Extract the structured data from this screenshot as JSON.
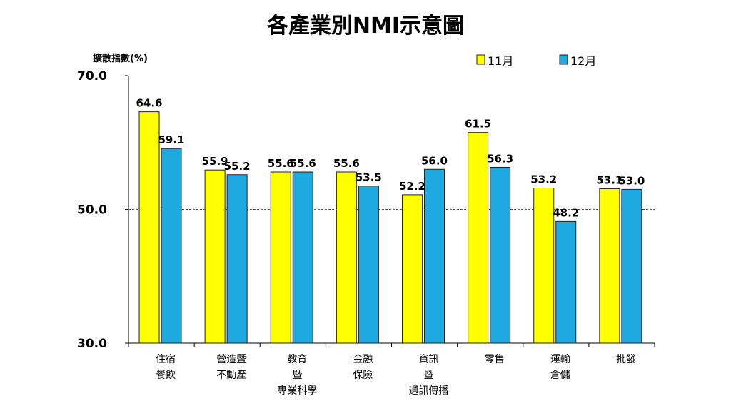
{
  "chart_data": {
    "type": "bar",
    "title": "各產業別NMI示意圖",
    "ylabel": "擴散指數(%)",
    "ylim": [
      30,
      70
    ],
    "yticks": [
      "30.0",
      "50.0",
      "70.0"
    ],
    "reference_line": 50,
    "legend_position": "top-right",
    "categories": [
      [
        "住宿",
        "餐飲"
      ],
      [
        "營造暨",
        "不動產"
      ],
      [
        "教育",
        "暨",
        "專業科學"
      ],
      [
        "金融",
        "保險"
      ],
      [
        "資訊",
        "暨",
        "通訊傳播"
      ],
      [
        "零售"
      ],
      [
        "運輸",
        "倉儲"
      ],
      [
        "批發"
      ]
    ],
    "series": [
      {
        "name": "11月",
        "color": "#ffff00",
        "values": [
          64.6,
          55.9,
          55.6,
          55.6,
          52.2,
          61.5,
          53.2,
          53.1
        ]
      },
      {
        "name": "12月",
        "color": "#1fa9e1",
        "values": [
          59.1,
          55.2,
          55.6,
          53.5,
          56.0,
          56.3,
          48.2,
          53.0
        ]
      }
    ]
  }
}
